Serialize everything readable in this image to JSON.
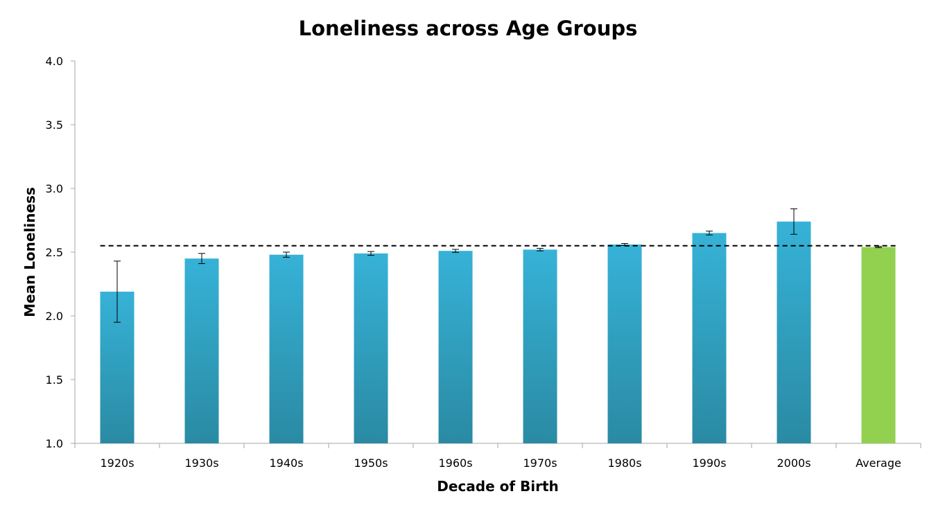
{
  "chart_data": {
    "type": "bar",
    "title": "Loneliness across Age Groups",
    "xlabel": "Decade of Birth",
    "ylabel": "Mean Loneliness",
    "ylim": [
      1.0,
      4.0
    ],
    "yticks": [
      "1.0",
      "1.5",
      "2.0",
      "2.5",
      "3.0",
      "3.5",
      "4.0"
    ],
    "categories": [
      "1920s",
      "1930s",
      "1940s",
      "1950s",
      "1960s",
      "1970s",
      "1980s",
      "1990s",
      "2000s",
      "Average"
    ],
    "values": [
      2.19,
      2.45,
      2.48,
      2.49,
      2.51,
      2.52,
      2.56,
      2.65,
      2.74,
      2.54
    ],
    "error": [
      0.24,
      0.04,
      0.02,
      0.015,
      0.012,
      0.01,
      0.008,
      0.015,
      0.1,
      0.005
    ],
    "reference_line": 2.55,
    "reference_line_style": "dashed",
    "grid": false,
    "legend": "none",
    "colors": {
      "bar_top": "#36b2d7",
      "bar_bottom": "#2a8aa3",
      "average_bar": "#92d050",
      "axis": "#a6a6a6",
      "error_bar": "#000000",
      "reference_line": "#000000"
    }
  }
}
